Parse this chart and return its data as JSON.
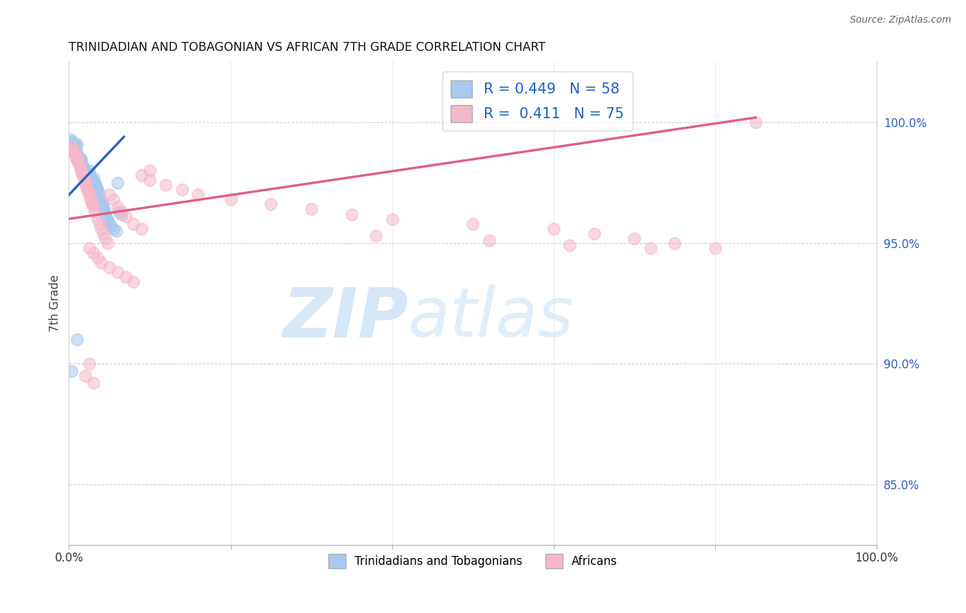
{
  "title": "TRINIDADIAN AND TOBAGONIAN VS AFRICAN 7TH GRADE CORRELATION CHART",
  "source": "Source: ZipAtlas.com",
  "ylabel": "7th Grade",
  "r_blue": 0.449,
  "n_blue": 58,
  "r_pink": 0.411,
  "n_pink": 75,
  "legend_label_blue": "Trinidadians and Tobagonians",
  "legend_label_pink": "Africans",
  "plot_bg": "#ffffff",
  "grid_color": "#cccccc",
  "blue_color": "#a8c8f0",
  "pink_color": "#f5b8c8",
  "blue_line_color": "#3060c0",
  "pink_line_color": "#e06080",
  "xlim": [
    0.0,
    1.0
  ],
  "ylim": [
    0.825,
    1.025
  ],
  "ytick_values": [
    0.85,
    0.9,
    0.95,
    1.0
  ],
  "ytick_labels": [
    "85.0%",
    "90.0%",
    "95.0%",
    "100.0%"
  ],
  "blue_scatter_x": [
    0.002,
    0.003,
    0.004,
    0.005,
    0.005,
    0.006,
    0.007,
    0.008,
    0.009,
    0.01,
    0.01,
    0.011,
    0.012,
    0.013,
    0.014,
    0.015,
    0.016,
    0.017,
    0.018,
    0.019,
    0.02,
    0.021,
    0.022,
    0.023,
    0.024,
    0.025,
    0.026,
    0.027,
    0.028,
    0.029,
    0.03,
    0.031,
    0.032,
    0.033,
    0.034,
    0.035,
    0.036,
    0.037,
    0.038,
    0.039,
    0.04,
    0.041,
    0.042,
    0.043,
    0.044,
    0.045,
    0.046,
    0.047,
    0.048,
    0.05,
    0.052,
    0.055,
    0.058,
    0.06,
    0.062,
    0.065,
    0.003,
    0.01
  ],
  "blue_scatter_y": [
    0.993,
    0.992,
    0.991,
    0.991,
    0.989,
    0.99,
    0.991,
    0.99,
    0.988,
    0.991,
    0.987,
    0.986,
    0.985,
    0.985,
    0.984,
    0.985,
    0.983,
    0.982,
    0.98,
    0.981,
    0.98,
    0.979,
    0.978,
    0.978,
    0.977,
    0.98,
    0.978,
    0.977,
    0.976,
    0.975,
    0.977,
    0.975,
    0.975,
    0.974,
    0.973,
    0.972,
    0.971,
    0.97,
    0.969,
    0.968,
    0.967,
    0.966,
    0.965,
    0.964,
    0.963,
    0.962,
    0.961,
    0.96,
    0.959,
    0.958,
    0.957,
    0.956,
    0.955,
    0.975,
    0.963,
    0.962,
    0.897,
    0.91
  ],
  "pink_scatter_x": [
    0.003,
    0.004,
    0.005,
    0.006,
    0.007,
    0.008,
    0.009,
    0.01,
    0.011,
    0.012,
    0.013,
    0.014,
    0.015,
    0.016,
    0.017,
    0.018,
    0.019,
    0.02,
    0.021,
    0.022,
    0.023,
    0.024,
    0.025,
    0.026,
    0.027,
    0.028,
    0.029,
    0.03,
    0.032,
    0.035,
    0.038,
    0.04,
    0.042,
    0.045,
    0.048,
    0.05,
    0.055,
    0.06,
    0.065,
    0.07,
    0.08,
    0.09,
    0.1,
    0.025,
    0.03,
    0.035,
    0.04,
    0.05,
    0.06,
    0.07,
    0.08,
    0.09,
    0.1,
    0.12,
    0.14,
    0.16,
    0.2,
    0.25,
    0.3,
    0.35,
    0.4,
    0.5,
    0.6,
    0.65,
    0.7,
    0.75,
    0.8,
    0.38,
    0.52,
    0.62,
    0.72,
    0.85,
    0.025,
    0.02,
    0.03
  ],
  "pink_scatter_y": [
    0.99,
    0.989,
    0.989,
    0.988,
    0.987,
    0.986,
    0.985,
    0.985,
    0.984,
    0.983,
    0.982,
    0.981,
    0.98,
    0.979,
    0.978,
    0.977,
    0.976,
    0.975,
    0.974,
    0.973,
    0.972,
    0.971,
    0.97,
    0.969,
    0.968,
    0.967,
    0.966,
    0.965,
    0.963,
    0.96,
    0.958,
    0.956,
    0.954,
    0.952,
    0.95,
    0.97,
    0.968,
    0.965,
    0.963,
    0.961,
    0.958,
    0.956,
    0.98,
    0.948,
    0.946,
    0.944,
    0.942,
    0.94,
    0.938,
    0.936,
    0.934,
    0.978,
    0.976,
    0.974,
    0.972,
    0.97,
    0.968,
    0.966,
    0.964,
    0.962,
    0.96,
    0.958,
    0.956,
    0.954,
    0.952,
    0.95,
    0.948,
    0.953,
    0.951,
    0.949,
    0.948,
    1.0,
    0.9,
    0.895,
    0.892
  ],
  "blue_line": [
    [
      0.0,
      0.068
    ],
    [
      0.97,
      0.994
    ]
  ],
  "pink_line": [
    [
      0.0,
      0.85
    ],
    [
      0.96,
      1.002
    ]
  ],
  "watermark_zip_color": "#c5ddf5",
  "watermark_atlas_color": "#c5ddf5"
}
